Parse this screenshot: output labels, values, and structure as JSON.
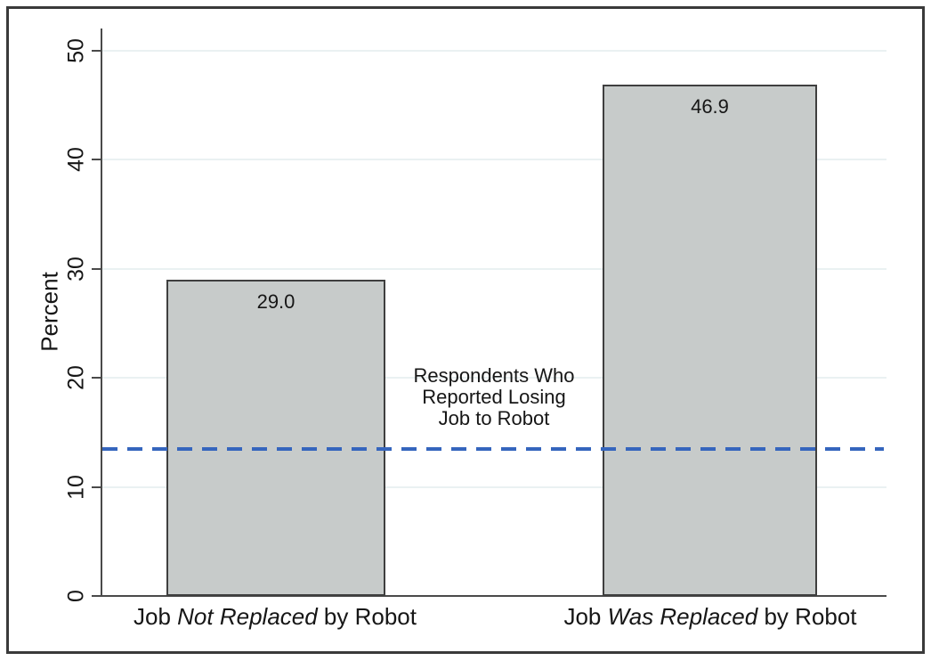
{
  "chart_data": {
    "type": "bar",
    "title": "",
    "xlabel": "",
    "ylabel": "Percent",
    "categories": [
      "Job Not Replaced by Robot",
      "Job Was Replaced by Robot"
    ],
    "categories_rich": [
      {
        "pre": "Job ",
        "em": "Not Replaced",
        "post": " by Robot"
      },
      {
        "pre": "Job ",
        "em": "Was Replaced",
        "post": " by Robot"
      }
    ],
    "values": [
      29.0,
      46.9
    ],
    "value_labels": [
      "29.0",
      "46.9"
    ],
    "ylim": [
      0,
      52
    ],
    "y_ticks": [
      0,
      10,
      20,
      30,
      40,
      50
    ],
    "grid": true,
    "legend": "none",
    "bar_fill_color": "#c7cbca",
    "bar_border_color": "#3f3f3f",
    "grid_color": "#eaf1f2",
    "ref_line": {
      "value": 13.5,
      "style": "dashed",
      "color": "#3565bd",
      "label_lines": [
        "Respondents Who",
        "Reported Losing",
        "Job to Robot"
      ]
    }
  }
}
